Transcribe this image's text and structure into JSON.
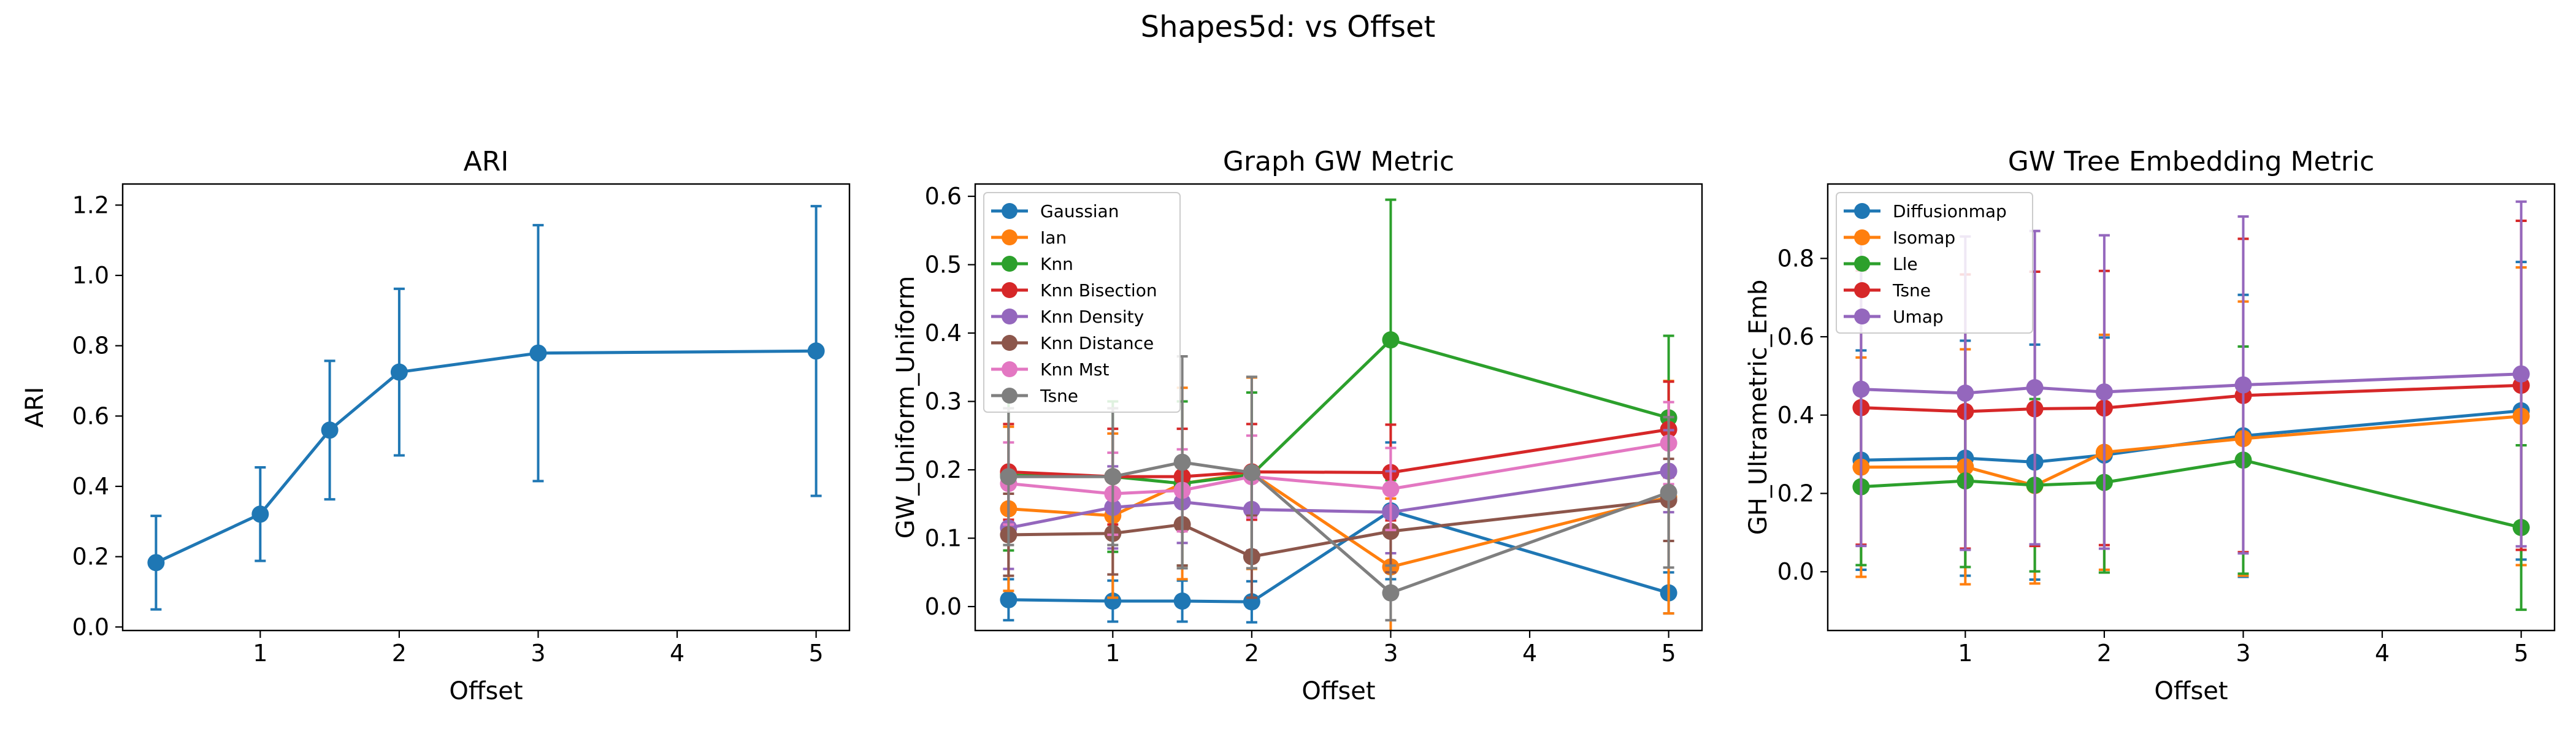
{
  "figure": {
    "title": "Shapes5d: vs Offset"
  },
  "chart_data": [
    {
      "type": "line",
      "title": "ARI",
      "xlabel": "Offset",
      "ylabel": "ARI",
      "xlim": [
        0.01,
        5.24
      ],
      "ylim": [
        -0.01,
        1.26
      ],
      "xticks": [
        1,
        2,
        3,
        4,
        5
      ],
      "yticks": [
        0.0,
        0.2,
        0.4,
        0.6,
        0.8,
        1.0,
        1.2
      ],
      "ytick_decimals": 1,
      "legend": null,
      "x": [
        0.25,
        1,
        1.5,
        2,
        3,
        5
      ],
      "series": [
        {
          "name": "",
          "color": "#1f77b4",
          "values": [
            0.183,
            0.321,
            0.56,
            0.725,
            0.779,
            0.785
          ],
          "errors": [
            0.133,
            0.133,
            0.197,
            0.237,
            0.364,
            0.412
          ]
        }
      ]
    },
    {
      "type": "line",
      "title": "Graph GW Metric",
      "xlabel": "Offset",
      "ylabel": "GW_Uniform_Uniform",
      "xlim": [
        0.01,
        5.24
      ],
      "ylim": [
        -0.035,
        0.618
      ],
      "xticks": [
        1,
        2,
        3,
        4,
        5
      ],
      "yticks": [
        0.0,
        0.1,
        0.2,
        0.3,
        0.4,
        0.5,
        0.6
      ],
      "ytick_decimals": 1,
      "legend": "top-left",
      "x": [
        0.25,
        1,
        1.5,
        2,
        3,
        5
      ],
      "series": [
        {
          "name": "Gaussian",
          "color": "#1f77b4",
          "values": [
            0.01,
            0.008,
            0.008,
            0.007,
            0.14,
            0.02
          ],
          "errors": [
            0.03,
            0.03,
            0.03,
            0.03,
            0.1,
            0.03
          ]
        },
        {
          "name": "Ian",
          "color": "#ff7f0e",
          "values": [
            0.143,
            0.133,
            0.18,
            0.195,
            0.058,
            0.16
          ],
          "errors": [
            0.12,
            0.12,
            0.14,
            0.14,
            0.1,
            0.17
          ]
        },
        {
          "name": "Knn",
          "color": "#2ca02c",
          "values": [
            0.192,
            0.19,
            0.18,
            0.193,
            0.39,
            0.276
          ],
          "errors": [
            0.11,
            0.11,
            0.12,
            0.12,
            0.205,
            0.12
          ]
        },
        {
          "name": "Knn Bisection",
          "color": "#d62728",
          "values": [
            0.197,
            0.19,
            0.19,
            0.197,
            0.196,
            0.259
          ],
          "errors": [
            0.07,
            0.07,
            0.07,
            0.07,
            0.07,
            0.07
          ]
        },
        {
          "name": "Knn Density",
          "color": "#9467bd",
          "values": [
            0.115,
            0.145,
            0.153,
            0.142,
            0.138,
            0.198
          ],
          "errors": [
            0.06,
            0.06,
            0.06,
            0.06,
            0.06,
            0.06
          ]
        },
        {
          "name": "Knn Distance",
          "color": "#8c564b",
          "values": [
            0.105,
            0.107,
            0.12,
            0.073,
            0.11,
            0.156
          ],
          "errors": [
            0.06,
            0.06,
            0.06,
            0.06,
            0.06,
            0.06
          ]
        },
        {
          "name": "Knn Mst",
          "color": "#e377c2",
          "values": [
            0.18,
            0.165,
            0.17,
            0.19,
            0.172,
            0.239
          ],
          "errors": [
            0.06,
            0.06,
            0.06,
            0.06,
            0.06,
            0.06
          ]
        },
        {
          "name": "Tsne",
          "color": "#7f7f7f",
          "values": [
            0.19,
            0.19,
            0.211,
            0.196,
            0.02,
            0.167
          ],
          "errors": [
            0.1,
            0.1,
            0.155,
            0.14,
            0.04,
            0.11
          ]
        }
      ]
    },
    {
      "type": "line",
      "title": "GW Tree Embedding Metric",
      "xlabel": "Offset",
      "ylabel": "GH_Ultrametric_Emb",
      "xlim": [
        0.01,
        5.24
      ],
      "ylim": [
        -0.15,
        0.99
      ],
      "xticks": [
        1,
        2,
        3,
        4,
        5
      ],
      "yticks": [
        0.0,
        0.2,
        0.4,
        0.6,
        0.8
      ],
      "ytick_decimals": 1,
      "legend": "top-left",
      "x": [
        0.25,
        1,
        1.5,
        2,
        3,
        5
      ],
      "series": [
        {
          "name": "Diffusionmap",
          "color": "#1f77b4",
          "values": [
            0.285,
            0.29,
            0.28,
            0.298,
            0.347,
            0.411
          ],
          "errors": [
            0.28,
            0.3,
            0.3,
            0.3,
            0.36,
            0.38
          ]
        },
        {
          "name": "Isomap",
          "color": "#ff7f0e",
          "values": [
            0.267,
            0.268,
            0.22,
            0.305,
            0.34,
            0.397
          ],
          "errors": [
            0.28,
            0.3,
            0.25,
            0.3,
            0.35,
            0.38
          ]
        },
        {
          "name": "Lle",
          "color": "#2ca02c",
          "values": [
            0.217,
            0.232,
            0.221,
            0.228,
            0.285,
            0.113
          ],
          "errors": [
            0.2,
            0.22,
            0.22,
            0.23,
            0.29,
            0.21
          ]
        },
        {
          "name": "Tsne",
          "color": "#d62728",
          "values": [
            0.419,
            0.409,
            0.416,
            0.418,
            0.45,
            0.476
          ],
          "errors": [
            0.35,
            0.35,
            0.35,
            0.35,
            0.4,
            0.42
          ]
        },
        {
          "name": "Umap",
          "color": "#9467bd",
          "values": [
            0.466,
            0.456,
            0.47,
            0.459,
            0.477,
            0.505
          ],
          "errors": [
            0.4,
            0.4,
            0.4,
            0.4,
            0.43,
            0.44
          ]
        }
      ]
    }
  ]
}
